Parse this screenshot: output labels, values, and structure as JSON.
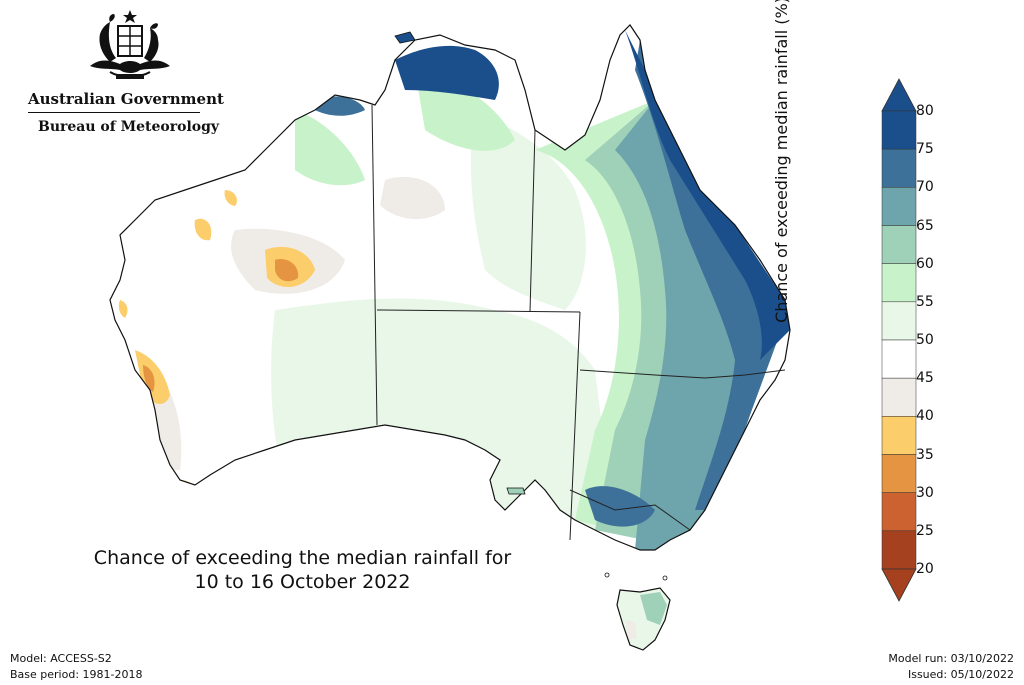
{
  "logo": {
    "org_name": "Australian Government",
    "department": "Bureau of Meteorology",
    "crest_icon": "coat-of-arms-icon"
  },
  "map": {
    "title_line1": "Chance of exceeding the median rainfall for",
    "title_line2": "10 to 16 October 2022",
    "legend": {
      "label": "Chance of exceeding median rainfall (%)",
      "ticks": [
        "80",
        "75",
        "70",
        "65",
        "60",
        "55",
        "50",
        "45",
        "40",
        "35",
        "30",
        "25",
        "20"
      ],
      "colors": [
        "#1a4f8c",
        "#3d7199",
        "#6ea5ac",
        "#9fd0b8",
        "#c8f2c9",
        "#e9f7e8",
        "#ffffff",
        "#efebe7",
        "#fccd6b",
        "#e59542",
        "#cc622f",
        "#a5411f"
      ],
      "over_color": "#1a4f8c",
      "under_color": "#a5411f"
    }
  },
  "footer": {
    "model": "Model: ACCESS-S2",
    "base_period": "Base period: 1981-2018",
    "model_run": "Model run: 03/10/2022",
    "issued": "Issued: 05/10/2022"
  }
}
